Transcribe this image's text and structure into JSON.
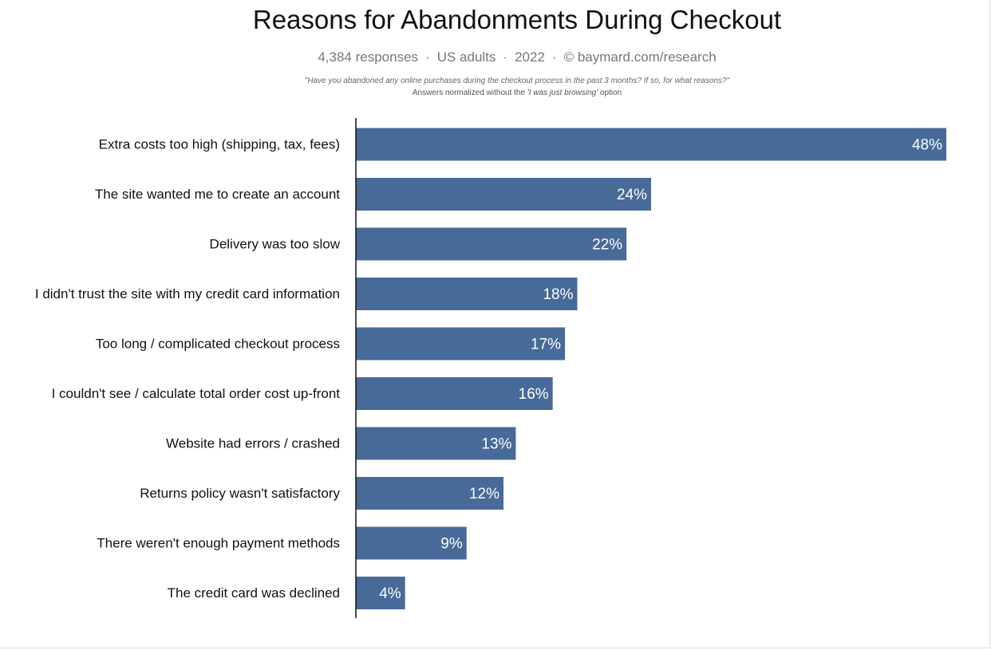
{
  "chart_data": {
    "type": "bar",
    "orientation": "horizontal",
    "title": "Reasons for Abandonments During Checkout",
    "subtitle_parts": [
      "4,384 responses",
      "US adults",
      "2022",
      "© baymard.com/research"
    ],
    "subtitle_separator": "·",
    "question": "\"Have you abandoned any online purchases during the checkout process in the past 3 months? If so, for what reasons?\"",
    "note_prefix": "Answers normalized without the ",
    "note_emphasis": "'I was just browsing'",
    "note_suffix": " option",
    "categories": [
      "Extra costs too high (shipping, tax, fees)",
      "The site wanted me to create an account",
      "Delivery was too slow",
      "I didn't trust the site with my credit card information",
      "Too long / complicated checkout process",
      "I couldn't see / calculate total order cost up-front",
      "Website had errors / crashed",
      "Returns policy wasn't satisfactory",
      "There weren't enough payment methods",
      "The credit card was declined"
    ],
    "values": [
      48,
      24,
      22,
      18,
      17,
      16,
      13,
      12,
      9,
      4
    ],
    "value_labels": [
      "48%",
      "24%",
      "22%",
      "18%",
      "17%",
      "16%",
      "13%",
      "12%",
      "9%",
      "4%"
    ],
    "xlim": [
      0,
      48
    ],
    "bar_color": "#476a98",
    "grid": false
  }
}
